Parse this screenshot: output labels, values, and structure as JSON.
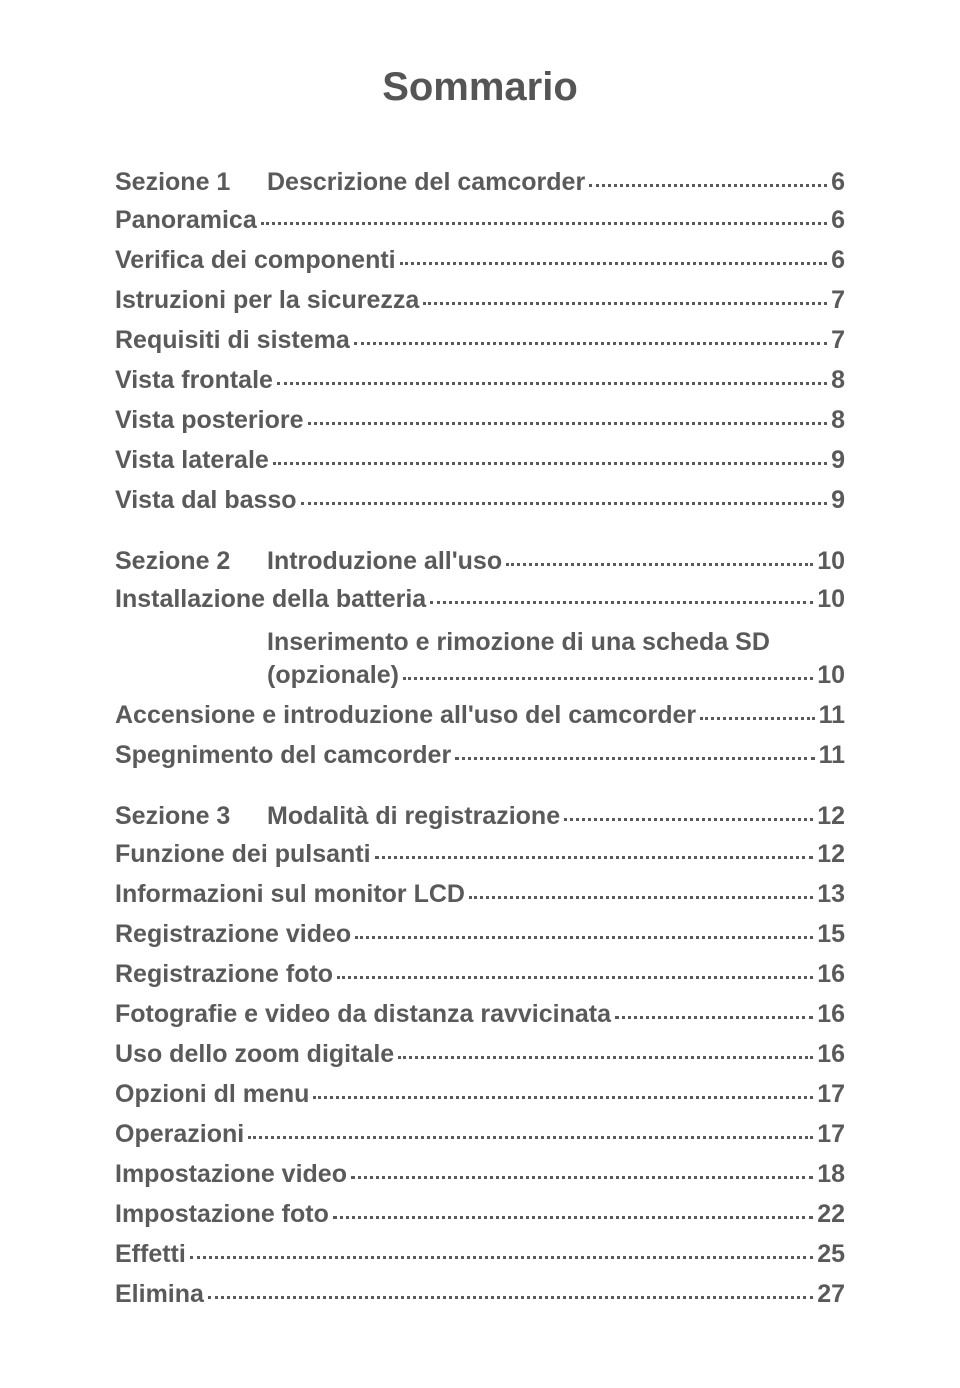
{
  "title": "Sommario",
  "text_color": "#5a5a5a",
  "background_color": "#ffffff",
  "font_family": "Arial, Helvetica, sans-serif",
  "title_fontsize": 40,
  "entry_fontsize": 25,
  "sections": [
    {
      "label": "Sezione 1",
      "heading": {
        "text": "Descrizione del camcorder",
        "page": "6"
      },
      "items": [
        {
          "text": "Panoramica",
          "page": "6"
        },
        {
          "text": "Verifica dei componenti",
          "page": "6"
        },
        {
          "text": "Istruzioni per la sicurezza",
          "page": "7"
        },
        {
          "text": "Requisiti di sistema",
          "page": "7"
        },
        {
          "text": "Vista frontale",
          "page": "8"
        },
        {
          "text": "Vista posteriore",
          "page": "8"
        },
        {
          "text": "Vista laterale",
          "page": "9"
        },
        {
          "text": "Vista dal basso",
          "page": "9"
        }
      ]
    },
    {
      "label": "Sezione 2",
      "heading": {
        "text": "Introduzione all'uso",
        "page": "10"
      },
      "items": [
        {
          "text": "Installazione della batteria",
          "page": "10"
        },
        {
          "multiline_pre": "Inserimento e rimozione di una scheda SD",
          "multiline_last": "(opzionale)",
          "page": "10"
        },
        {
          "text": "Accensione e introduzione all'uso del camcorder",
          "page": "11"
        },
        {
          "text": "Spegnimento del camcorder",
          "page": "11"
        }
      ]
    },
    {
      "label": "Sezione 3",
      "heading": {
        "text": "Modalità di registrazione",
        "page": "12"
      },
      "items": [
        {
          "text": "Funzione dei pulsanti",
          "page": "12"
        },
        {
          "text": "Informazioni sul monitor LCD",
          "page": "13"
        },
        {
          "text": "Registrazione video",
          "page": "15"
        },
        {
          "text": "Registrazione foto",
          "page": "16"
        },
        {
          "text": "Fotografie e video da distanza ravvicinata",
          "page": "16"
        },
        {
          "text": "Uso dello zoom digitale",
          "page": "16"
        },
        {
          "text": "Opzioni dl menu",
          "page": "17"
        },
        {
          "text": "Operazioni",
          "page": "17"
        },
        {
          "text": "Impostazione video",
          "page": "18"
        },
        {
          "text": "Impostazione foto",
          "page": "22"
        },
        {
          "text": "Effetti",
          "page": "25"
        },
        {
          "text": "Elimina",
          "page": "27"
        }
      ]
    }
  ]
}
